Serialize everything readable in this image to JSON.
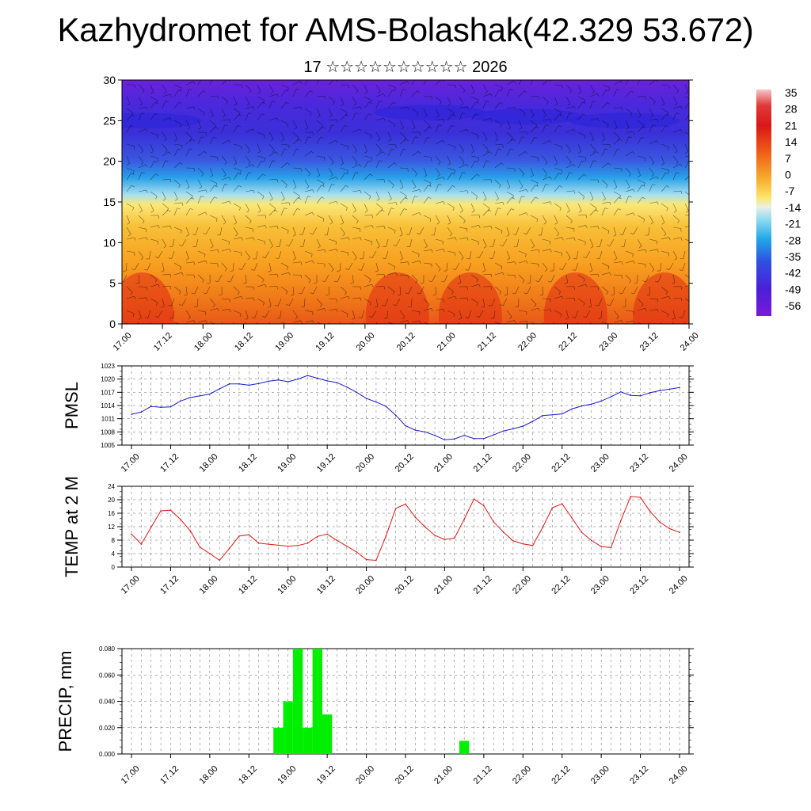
{
  "title": "Kazhydromet for AMS-Bolashak(42.329 53.672)",
  "subtitle": "17 ☆☆☆☆☆☆☆☆☆☆ 2026",
  "x_tick_labels": [
    "17.00",
    "17.12",
    "18.00",
    "18.12",
    "19.00",
    "19.12",
    "20.00",
    "20.12",
    "21.00",
    "21.12",
    "22.00",
    "22.12",
    "23.00",
    "23.12",
    "24.00"
  ],
  "colors": {
    "pmsl_line": "#1a1acc",
    "temp_line": "#e01818",
    "precip_bar": "#00ee00",
    "axis": "#000000"
  },
  "chart_data": [
    {
      "type": "heatmap",
      "name": "vertical temperature cross-section with wind barbs",
      "xlabel": "",
      "ylabel": "",
      "ylim": [
        0,
        30
      ],
      "y_ticks": [
        0,
        5,
        10,
        15,
        20,
        25,
        30
      ],
      "colorbar": {
        "labels": [
          "35",
          "28",
          "21",
          "14",
          "7",
          "0",
          "-7",
          "-14",
          "-21",
          "-28",
          "-35",
          "-42",
          "-49",
          "-56"
        ],
        "range": [
          -60,
          38
        ]
      },
      "level_profile": {
        "levels": [
          0,
          5,
          10,
          14,
          15,
          17,
          20,
          23,
          25,
          28,
          30
        ],
        "temperature": [
          16,
          10,
          4,
          0,
          -8,
          -22,
          -38,
          -50,
          -56,
          -52,
          -48
        ]
      }
    },
    {
      "type": "line",
      "name": "PMSL",
      "ylabel": "PMSL",
      "ylim": [
        1005,
        1023
      ],
      "y_ticks": [
        1005,
        1008,
        1011,
        1014,
        1017,
        1020,
        1023
      ],
      "x": [
        0,
        0.125,
        0.25,
        0.375,
        0.5,
        0.625,
        0.75,
        0.875,
        1,
        1.125,
        1.25,
        1.375,
        1.5,
        1.625,
        1.75,
        1.875,
        2,
        2.125,
        2.25,
        2.375,
        2.5,
        2.625,
        2.75,
        2.875,
        3,
        3.125,
        3.25,
        3.375,
        3.5,
        3.625,
        3.75,
        3.875,
        4,
        4.125,
        4.25,
        4.375,
        4.5,
        4.625,
        4.75,
        4.875,
        5,
        5.125,
        5.25,
        5.375,
        5.5,
        5.625,
        5.75,
        5.875,
        6,
        6.125,
        6.25,
        6.375,
        6.5,
        6.625,
        6.75,
        6.875,
        7
      ],
      "values": [
        1012,
        1012.5,
        1013.8,
        1013.6,
        1013.7,
        1015,
        1015.8,
        1016.2,
        1016.6,
        1017.8,
        1018.9,
        1018.9,
        1018.6,
        1019,
        1019.5,
        1019.8,
        1019.4,
        1020,
        1020.8,
        1020.2,
        1019.6,
        1019.2,
        1018.2,
        1017,
        1015.6,
        1014.8,
        1013.8,
        1011.8,
        1009.4,
        1008.4,
        1008,
        1007.2,
        1006.2,
        1006.4,
        1007.2,
        1006.5,
        1006.5,
        1007.3,
        1008.2,
        1008.7,
        1009.3,
        1010.4,
        1011.7,
        1011.9,
        1012.1,
        1013.2,
        1013.9,
        1014.3,
        1015,
        1016,
        1017.1,
        1016.3,
        1016.2,
        1016.9,
        1017.4,
        1017.7,
        1018.1
      ]
    },
    {
      "type": "line",
      "name": "TEMP at 2 M",
      "ylabel": "TEMP at 2 M",
      "ylim": [
        0,
        24
      ],
      "y_ticks": [
        0,
        4,
        8,
        12,
        16,
        20,
        24
      ],
      "x": [
        0,
        0.125,
        0.25,
        0.375,
        0.5,
        0.625,
        0.75,
        0.875,
        1,
        1.125,
        1.25,
        1.375,
        1.5,
        1.625,
        1.75,
        1.875,
        2,
        2.125,
        2.25,
        2.375,
        2.5,
        2.625,
        2.75,
        2.875,
        3,
        3.125,
        3.25,
        3.375,
        3.5,
        3.625,
        3.75,
        3.875,
        4,
        4.125,
        4.25,
        4.375,
        4.5,
        4.625,
        4.75,
        4.875,
        5,
        5.125,
        5.25,
        5.375,
        5.5,
        5.625,
        5.75,
        5.875,
        6,
        6.125,
        6.25,
        6.375,
        6.5,
        6.625,
        6.75,
        6.875,
        7
      ],
      "values": [
        9.8,
        6.8,
        11.8,
        16.7,
        16.9,
        14.2,
        10.8,
        5.9,
        4,
        2,
        5.5,
        9.2,
        9.6,
        7.1,
        6.8,
        6.5,
        6.2,
        6.4,
        7.1,
        9.1,
        9.8,
        7.9,
        6.2,
        4.5,
        2.2,
        2,
        9.2,
        17.4,
        18.7,
        14.8,
        11.9,
        9.4,
        8.2,
        8.6,
        14.2,
        20.2,
        18.2,
        13.4,
        10.4,
        7.8,
        6.9,
        6.4,
        11.7,
        17.6,
        18.8,
        14.6,
        10.3,
        7.9,
        6.1,
        5.8,
        13.8,
        21,
        20.7,
        16.5,
        13.3,
        11.4,
        10.3
      ]
    },
    {
      "type": "bar",
      "name": "PRECIP, mm",
      "ylabel": "PRECIP, mm",
      "ylim": [
        0,
        0.08
      ],
      "y_ticks": [
        "0.000",
        "0.020",
        "0.040",
        "0.060",
        "0.080"
      ],
      "bars": [
        {
          "x": 1.875,
          "value": 0.02
        },
        {
          "x": 2.0,
          "value": 0.04
        },
        {
          "x": 2.125,
          "value": 0.08
        },
        {
          "x": 2.25,
          "value": 0.02
        },
        {
          "x": 2.375,
          "value": 0.08
        },
        {
          "x": 2.5,
          "value": 0.03
        },
        {
          "x": 4.25,
          "value": 0.01
        }
      ]
    }
  ]
}
